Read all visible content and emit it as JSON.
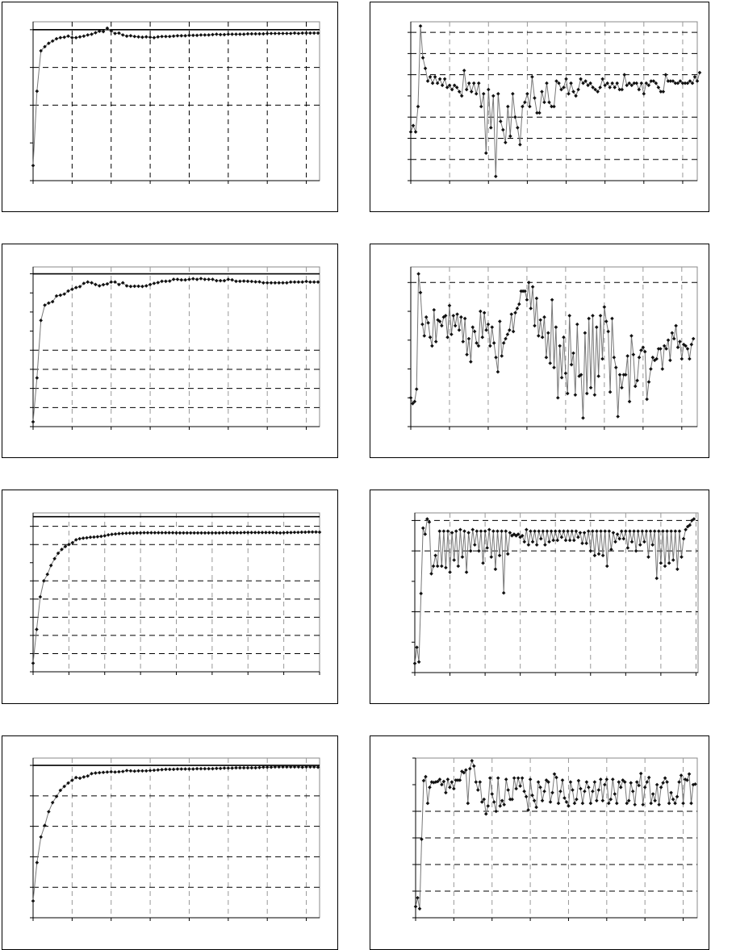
{
  "chart_data": [
    {
      "type": "line",
      "ylim": [
        0,
        4.21
      ],
      "y_ticks": [
        0,
        1,
        2,
        3,
        4
      ],
      "h_grid_dashed": [
        2,
        3
      ],
      "ref_line": 4,
      "xlim": [
        0,
        73.4
      ],
      "x_step": 10,
      "x_grid_tone": "dark",
      "grid": true,
      "values": [
        0.4,
        2.37,
        3.44,
        3.55,
        3.64,
        3.7,
        3.76,
        3.79,
        3.8,
        3.83,
        3.79,
        3.79,
        3.81,
        3.83,
        3.86,
        3.88,
        3.92,
        3.96,
        3.95,
        4.04,
        3.97,
        3.9,
        3.91,
        3.86,
        3.83,
        3.84,
        3.82,
        3.81,
        3.8,
        3.81,
        3.8,
        3.79,
        3.81,
        3.82,
        3.82,
        3.82,
        3.83,
        3.84,
        3.84,
        3.84,
        3.85,
        3.85,
        3.85,
        3.86,
        3.86,
        3.86,
        3.87,
        3.88,
        3.87,
        3.87,
        3.88,
        3.88,
        3.88,
        3.88,
        3.88,
        3.89,
        3.89,
        3.89,
        3.89,
        3.89,
        3.9,
        3.9,
        3.9,
        3.9,
        3.9,
        3.9,
        3.9,
        3.91,
        3.9,
        3.91,
        3.91,
        3.91,
        3.91,
        3.91
      ]
    },
    {
      "type": "line",
      "ylim": [
        0,
        7.5
      ],
      "y_ticks": [
        0,
        1,
        2,
        3,
        4,
        5,
        6,
        7
      ],
      "h_grid_dashed": [
        1,
        2,
        3,
        5,
        6,
        7
      ],
      "ref_line": null,
      "xlim": [
        0,
        118
      ],
      "x_step": 16,
      "x_grid_tone": "light",
      "grid": true,
      "values": [
        2.3,
        2.6,
        2.3,
        3.5,
        7.3,
        5.8,
        5.3,
        4.7,
        4.9,
        4.6,
        4.9,
        4.6,
        4.8,
        4.5,
        4.8,
        4.4,
        4.5,
        4.3,
        4.5,
        4.4,
        4.2,
        4.0,
        5.2,
        4.3,
        4.6,
        4.2,
        4.6,
        4.1,
        4.6,
        3.5,
        4.1,
        1.3,
        4.3,
        2.5,
        4.0,
        0.2,
        4.1,
        2.8,
        2.4,
        1.8,
        3.5,
        2.1,
        4.1,
        3.0,
        2.5,
        1.7,
        3.5,
        3.7,
        4.1,
        3.5,
        4.9,
        3.9,
        3.2,
        3.2,
        4.2,
        3.7,
        4.6,
        3.7,
        3.5,
        3.5,
        4.7,
        4.6,
        4.3,
        4.4,
        4.8,
        4.1,
        4.6,
        4.2,
        4.0,
        4.3,
        4.8,
        4.6,
        4.7,
        4.5,
        4.6,
        4.4,
        4.3,
        4.2,
        4.4,
        4.8,
        4.5,
        4.6,
        4.4,
        4.6,
        4.4,
        4.6,
        4.3,
        4.3,
        5.0,
        4.5,
        4.6,
        4.5,
        4.6,
        4.6,
        4.3,
        4.6,
        4.1,
        4.6,
        4.5,
        4.7,
        4.7,
        4.6,
        4.4,
        4.2,
        4.2,
        5.0,
        4.7,
        4.7,
        4.7,
        4.6,
        4.6,
        4.7,
        4.6,
        4.6,
        4.6,
        4.7,
        4.6,
        4.9,
        4.7,
        5.1
      ]
    },
    {
      "type": "line",
      "ylim": [
        0,
        8.36
      ],
      "y_ticks": [
        0,
        1,
        2,
        3,
        4,
        5,
        6,
        7,
        8
      ],
      "h_grid_dashed": [
        1,
        2,
        3,
        4,
        8
      ],
      "ref_line": 8,
      "xlim": [
        0,
        73.4
      ],
      "x_step": 10,
      "x_grid_tone": "light",
      "grid": true,
      "values": [
        0.25,
        2.55,
        5.56,
        6.36,
        6.47,
        6.54,
        6.84,
        6.88,
        6.94,
        7.1,
        7.19,
        7.28,
        7.33,
        7.5,
        7.57,
        7.53,
        7.44,
        7.37,
        7.43,
        7.47,
        7.57,
        7.57,
        7.44,
        7.53,
        7.37,
        7.34,
        7.35,
        7.35,
        7.34,
        7.37,
        7.44,
        7.5,
        7.54,
        7.61,
        7.61,
        7.62,
        7.71,
        7.71,
        7.68,
        7.68,
        7.71,
        7.74,
        7.71,
        7.75,
        7.71,
        7.71,
        7.71,
        7.64,
        7.64,
        7.64,
        7.71,
        7.68,
        7.61,
        7.61,
        7.62,
        7.61,
        7.6,
        7.58,
        7.58,
        7.53,
        7.53,
        7.53,
        7.53,
        7.53,
        7.53,
        7.53,
        7.57,
        7.57,
        7.57,
        7.57,
        7.6,
        7.57,
        7.57,
        7.57
      ]
    },
    {
      "type": "line",
      "ylim": [
        0,
        5.54
      ],
      "y_ticks": [
        0,
        1,
        2,
        3,
        4,
        5
      ],
      "h_grid_dashed": [
        5
      ],
      "ref_line": null,
      "xlim": [
        0,
        148
      ],
      "x_step": 20,
      "x_grid_tone": "light",
      "grid": true,
      "values": [
        1.0,
        0.8,
        0.87,
        1.3,
        5.3,
        4.65,
        3.55,
        3.15,
        3.8,
        3.6,
        3.1,
        2.8,
        4.05,
        2.95,
        3.7,
        3.65,
        3.5,
        3.8,
        3.85,
        3.1,
        4.2,
        3.2,
        3.85,
        3.5,
        3.9,
        3.35,
        3.8,
        2.95,
        3.75,
        2.5,
        3.05,
        2.25,
        3.45,
        3.3,
        2.9,
        2.8,
        4.0,
        3.1,
        3.95,
        3.35,
        3.55,
        2.8,
        3.45,
        2.9,
        2.4,
        1.9,
        3.65,
        2.45,
        2.9,
        3.05,
        3.2,
        3.35,
        3.9,
        3.3,
        3.95,
        4.1,
        4.25,
        4.7,
        4.7,
        4.7,
        4.4,
        5.0,
        4.1,
        4.85,
        3.5,
        4.45,
        3.15,
        3.7,
        3.1,
        3.8,
        2.4,
        3.25,
        2.2,
        4.4,
        2.05,
        3.45,
        1.0,
        2.8,
        1.7,
        3.1,
        1.85,
        1.15,
        3.85,
        2.15,
        2.55,
        1.1,
        3.55,
        1.75,
        1.8,
        0.3,
        3.25,
        1.15,
        3.75,
        1.35,
        3.85,
        1.1,
        3.45,
        1.75,
        3.85,
        2.35,
        4.15,
        3.65,
        3.3,
        1.2,
        3.75,
        2.4,
        2.05,
        0.35,
        1.8,
        1.35,
        1.8,
        1.8,
        2.45,
        0.87,
        3.15,
        2.5,
        1.4,
        1.6,
        2.4,
        2.65,
        2.75,
        2.6,
        0.95,
        1.55,
        2.0,
        2.4,
        2.3,
        2.35,
        2.7,
        2.7,
        2.0,
        2.8,
        2.7,
        3.0,
        2.3,
        3.25,
        3.05,
        3.5,
        2.75,
        2.95,
        2.35,
        2.85,
        2.8,
        2.7,
        2.35,
        2.85,
        3.05
      ]
    },
    {
      "type": "line",
      "ylim": [
        0,
        8.74
      ],
      "y_ticks": [
        0,
        1,
        2,
        3,
        4,
        5,
        6,
        7,
        8
      ],
      "h_grid_dashed": [
        1,
        2,
        3,
        4,
        5,
        7,
        8
      ],
      "ref_line": 8.53,
      "xlim": [
        0,
        80
      ],
      "x_step": 10,
      "x_grid_tone": "light",
      "grid": true,
      "values": [
        0.47,
        2.33,
        4.12,
        5.0,
        5.36,
        5.85,
        6.22,
        6.52,
        6.73,
        6.89,
        7.0,
        7.1,
        7.26,
        7.32,
        7.35,
        7.37,
        7.4,
        7.41,
        7.43,
        7.45,
        7.48,
        7.53,
        7.56,
        7.58,
        7.6,
        7.61,
        7.62,
        7.63,
        7.63,
        7.64,
        7.64,
        7.65,
        7.65,
        7.65,
        7.65,
        7.65,
        7.65,
        7.65,
        7.65,
        7.65,
        7.64,
        7.64,
        7.64,
        7.64,
        7.64,
        7.64,
        7.64,
        7.64,
        7.64,
        7.64,
        7.64,
        7.64,
        7.64,
        7.65,
        7.65,
        7.65,
        7.65,
        7.65,
        7.65,
        7.66,
        7.66,
        7.66,
        7.66,
        7.66,
        7.66,
        7.66,
        7.66,
        7.66,
        7.65,
        7.64,
        7.65,
        7.66,
        7.66,
        7.67,
        7.67,
        7.68,
        7.68,
        7.69,
        7.69,
        7.69,
        7.68
      ]
    },
    {
      "type": "line",
      "ylim": [
        0,
        5.25
      ],
      "y_ticks": [
        0,
        1,
        2,
        3,
        4,
        5
      ],
      "h_grid_dashed": [
        2,
        4,
        5
      ],
      "ref_line": null,
      "xlim": [
        0,
        137
      ],
      "x_step": 17,
      "x_grid_tone": "light",
      "grid": true,
      "values": [
        0.3,
        0.83,
        0.35,
        2.6,
        4.75,
        4.55,
        5.05,
        4.95,
        3.25,
        3.5,
        3.85,
        3.5,
        4.65,
        3.5,
        4.65,
        3.45,
        4.65,
        3.3,
        4.6,
        3.7,
        4.65,
        3.5,
        4.7,
        3.8,
        4.65,
        3.3,
        4.6,
        4.0,
        4.7,
        4.2,
        4.65,
        4.0,
        4.65,
        3.6,
        4.65,
        4.1,
        4.7,
        3.8,
        4.65,
        3.4,
        4.65,
        3.85,
        4.65,
        2.62,
        4.65,
        3.9,
        4.6,
        4.5,
        4.55,
        4.5,
        4.55,
        4.45,
        4.5,
        4.3,
        4.7,
        4.2,
        4.65,
        4.3,
        4.65,
        4.2,
        4.65,
        4.4,
        4.65,
        4.2,
        4.65,
        4.3,
        4.65,
        4.35,
        4.65,
        4.35,
        4.65,
        4.45,
        4.65,
        4.35,
        4.65,
        4.35,
        4.65,
        4.35,
        4.65,
        4.45,
        4.6,
        4.25,
        4.6,
        4.25,
        4.65,
        4.0,
        4.65,
        3.85,
        4.65,
        3.9,
        4.65,
        3.85,
        4.65,
        3.5,
        4.65,
        4.05,
        4.6,
        4.3,
        4.55,
        4.4,
        4.65,
        4.4,
        4.65,
        4.1,
        4.65,
        4.3,
        4.65,
        4.0,
        4.65,
        4.2,
        4.65,
        4.3,
        4.65,
        3.8,
        4.65,
        4.2,
        4.65,
        3.1,
        4.65,
        3.6,
        4.65,
        3.5,
        4.65,
        3.6,
        4.65,
        3.7,
        4.65,
        3.4,
        4.65,
        3.8,
        4.4,
        4.7,
        4.8,
        4.85,
        5.0,
        5.05
      ]
    },
    {
      "type": "line",
      "ylim": [
        0,
        5.24
      ],
      "y_ticks": [
        0,
        1,
        2,
        3,
        4,
        5
      ],
      "h_grid_dashed": [
        1,
        2,
        3,
        4
      ],
      "ref_line": 5,
      "xlim": [
        0,
        73.4
      ],
      "x_step": 10,
      "x_grid_tone": "light",
      "grid": true,
      "values": [
        0.55,
        1.81,
        2.65,
        3.03,
        3.48,
        3.78,
        3.98,
        4.18,
        4.31,
        4.42,
        4.51,
        4.6,
        4.58,
        4.62,
        4.65,
        4.73,
        4.75,
        4.76,
        4.77,
        4.78,
        4.79,
        4.78,
        4.79,
        4.8,
        4.83,
        4.82,
        4.81,
        4.82,
        4.82,
        4.82,
        4.83,
        4.84,
        4.85,
        4.86,
        4.87,
        4.87,
        4.87,
        4.88,
        4.88,
        4.88,
        4.88,
        4.88,
        4.89,
        4.89,
        4.89,
        4.89,
        4.89,
        4.9,
        4.9,
        4.91,
        4.91,
        4.91,
        4.92,
        4.92,
        4.92,
        4.92,
        4.92,
        4.92,
        4.93,
        4.94,
        4.94,
        4.94,
        4.95,
        4.95,
        4.95,
        4.95,
        4.95,
        4.95,
        4.95,
        4.94,
        4.95,
        4.95,
        4.95,
        4.94
      ]
    },
    {
      "type": "line",
      "ylim": [
        0,
        6
      ],
      "y_ticks": [
        0,
        1,
        2,
        3,
        4,
        5,
        6
      ],
      "h_grid_dashed": [
        1,
        2,
        3,
        4
      ],
      "ref_line": null,
      "xlim": [
        0,
        140
      ],
      "x_step": 19,
      "x_grid_tone": "light",
      "grid": true,
      "values": [
        0.42,
        0.75,
        0.34,
        2.95,
        5.15,
        5.3,
        4.3,
        4.9,
        5.1,
        5.08,
        5.1,
        5.12,
        5.2,
        5.0,
        5.12,
        4.7,
        5.2,
        4.9,
        5.1,
        4.85,
        5.17,
        5.17,
        5.17,
        5.5,
        5.45,
        5.55,
        4.3,
        5.6,
        5.9,
        5.7,
        5.1,
        4.8,
        5.1,
        4.35,
        4.45,
        3.9,
        4.2,
        5.25,
        4.65,
        4.35,
        4.0,
        5.25,
        4.2,
        4.4,
        4.25,
        5.2,
        4.8,
        4.45,
        4.45,
        5.25,
        4.85,
        5.25,
        4.95,
        5.25,
        4.75,
        4.55,
        4.05,
        5.2,
        4.6,
        4.4,
        4.15,
        5.1,
        4.9,
        4.4,
        4.75,
        5.17,
        5.1,
        4.35,
        4.7,
        5.4,
        5.27,
        4.3,
        4.75,
        5.17,
        4.5,
        4.35,
        4.2,
        5.1,
        4.8,
        4.3,
        4.45,
        5.15,
        4.85,
        4.3,
        4.75,
        5.1,
        4.9,
        4.3,
        4.75,
        5.1,
        4.4,
        4.8,
        5.2,
        4.4,
        5.0,
        5.2,
        4.3,
        4.45,
        5.2,
        4.65,
        4.3,
        5.1,
        4.9,
        5.17,
        5.1,
        4.3,
        4.4,
        5.07,
        4.75,
        4.25,
        5.1,
        4.97,
        5.42,
        4.25,
        4.9,
        5.1,
        5.27,
        4.3,
        4.65,
        4.4,
        5.0,
        4.25,
        4.9,
        5.07,
        5.25,
        5.1,
        4.3,
        4.7,
        4.45,
        4.3,
        4.55,
        5.1,
        5.35,
        4.3,
        5.2,
        5.17,
        5.4,
        4.3,
        5.0,
        5.02
      ]
    }
  ]
}
